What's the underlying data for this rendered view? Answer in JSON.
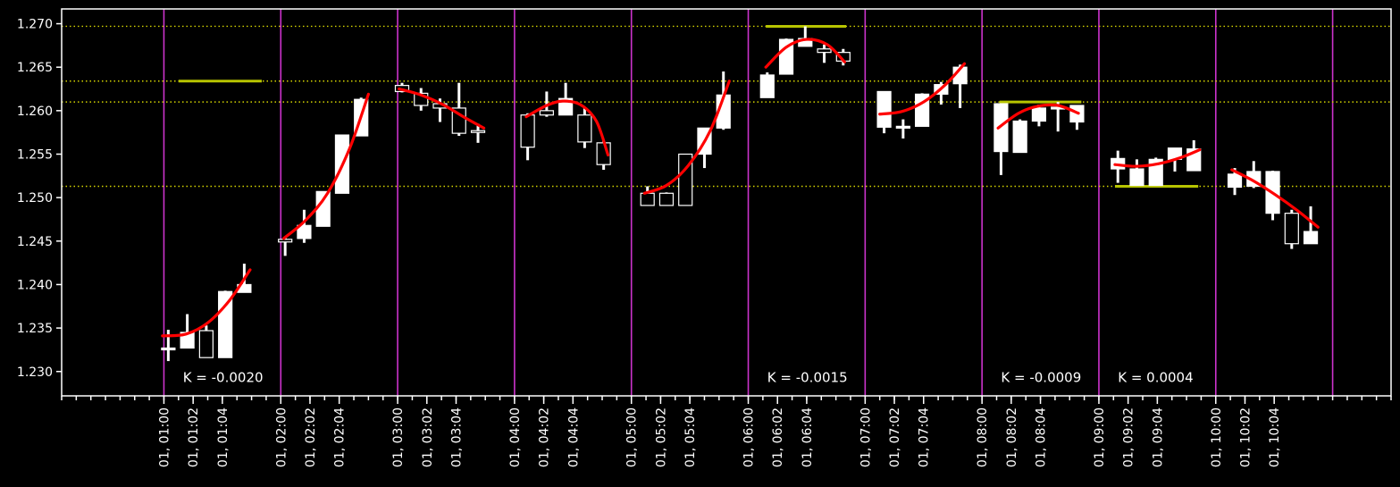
{
  "chart_data": {
    "type": "candlestick",
    "title": "",
    "xlabel": "",
    "ylabel": "",
    "ylim": [
      1.2272,
      1.2717
    ],
    "xlim": [
      -7,
      84
    ],
    "yticks": [
      "1.230",
      "1.235",
      "1.240",
      "1.245",
      "1.250",
      "1.255",
      "1.260",
      "1.265",
      "1.270"
    ],
    "xticks": [
      {
        "x": 0,
        "label": "01, 01:00"
      },
      {
        "x": 2,
        "label": "01, 01:02"
      },
      {
        "x": 4,
        "label": "01, 01:04"
      },
      {
        "x": 8,
        "label": "01, 02:00"
      },
      {
        "x": 10,
        "label": "01, 02:02"
      },
      {
        "x": 12,
        "label": "01, 02:04"
      },
      {
        "x": 16,
        "label": "01, 03:00"
      },
      {
        "x": 18,
        "label": "01, 03:02"
      },
      {
        "x": 20,
        "label": "01, 03:04"
      },
      {
        "x": 24,
        "label": "01, 04:00"
      },
      {
        "x": 26,
        "label": "01, 04:02"
      },
      {
        "x": 28,
        "label": "01, 04:04"
      },
      {
        "x": 32,
        "label": "01, 05:00"
      },
      {
        "x": 34,
        "label": "01, 05:02"
      },
      {
        "x": 36,
        "label": "01, 05:04"
      },
      {
        "x": 40,
        "label": "01, 06:00"
      },
      {
        "x": 42,
        "label": "01, 06:02"
      },
      {
        "x": 44,
        "label": "01, 06:04"
      },
      {
        "x": 48,
        "label": "01, 07:00"
      },
      {
        "x": 50,
        "label": "01, 07:02"
      },
      {
        "x": 52,
        "label": "01, 07:04"
      },
      {
        "x": 56,
        "label": "01, 08:00"
      },
      {
        "x": 58,
        "label": "01, 08:02"
      },
      {
        "x": 60,
        "label": "01, 08:04"
      },
      {
        "x": 64,
        "label": "01, 09:00"
      },
      {
        "x": 66,
        "label": "01, 09:02"
      },
      {
        "x": 68,
        "label": "01, 09:04"
      },
      {
        "x": 72,
        "label": "01, 10:00"
      },
      {
        "x": 74,
        "label": "01, 10:02"
      },
      {
        "x": 76,
        "label": "01, 10:04"
      }
    ],
    "vlines": [
      0,
      8,
      16,
      24,
      32,
      40,
      48,
      56,
      64,
      72,
      80
    ],
    "hlines": [
      1.2697,
      1.2634,
      1.261,
      1.2513
    ],
    "level_segments": [
      {
        "y": 1.2634,
        "x0": 1,
        "x1": 6.7
      },
      {
        "y": 1.2697,
        "x0": 41.2,
        "x1": 46.7
      },
      {
        "y": 1.261,
        "x0": 57.2,
        "x1": 62.8
      },
      {
        "y": 1.2513,
        "x0": 65.1,
        "x1": 70.8
      }
    ],
    "annotations": [
      {
        "text": "K = -0.0020",
        "x": 1.3,
        "y": 1.2288
      },
      {
        "text": "K = -0.0015",
        "x": 41.3,
        "y": 1.2288
      },
      {
        "text": "K = -0.0009",
        "x": 57.3,
        "y": 1.2288
      },
      {
        "text": "K = 0.0004",
        "x": 65.3,
        "y": 1.2288
      }
    ],
    "candles": [
      {
        "x": 0.3,
        "o": 1.2325,
        "h": 1.2348,
        "l": 1.2312,
        "c": 1.2327
      },
      {
        "x": 1.6,
        "o": 1.2327,
        "h": 1.2366,
        "l": 1.2327,
        "c": 1.2345
      },
      {
        "x": 2.9,
        "o": 1.2347,
        "h": 1.2353,
        "l": 1.2316,
        "c": 1.2316
      },
      {
        "x": 4.2,
        "o": 1.2316,
        "h": 1.2393,
        "l": 1.2316,
        "c": 1.2392
      },
      {
        "x": 5.5,
        "o": 1.2391,
        "h": 1.2424,
        "l": 1.2391,
        "c": 1.24
      },
      {
        "x": 8.3,
        "o": 1.2452,
        "h": 1.2454,
        "l": 1.2433,
        "c": 1.2449
      },
      {
        "x": 9.6,
        "o": 1.2453,
        "h": 1.2486,
        "l": 1.2448,
        "c": 1.2468
      },
      {
        "x": 10.9,
        "o": 1.2467,
        "h": 1.2507,
        "l": 1.2467,
        "c": 1.2507
      },
      {
        "x": 12.2,
        "o": 1.2505,
        "h": 1.2572,
        "l": 1.2505,
        "c": 1.2572
      },
      {
        "x": 13.5,
        "o": 1.2571,
        "h": 1.2615,
        "l": 1.2571,
        "c": 1.2613
      },
      {
        "x": 16.3,
        "o": 1.2629,
        "h": 1.2632,
        "l": 1.2621,
        "c": 1.2622
      },
      {
        "x": 17.6,
        "o": 1.262,
        "h": 1.2626,
        "l": 1.26,
        "c": 1.2606
      },
      {
        "x": 18.9,
        "o": 1.2608,
        "h": 1.2614,
        "l": 1.2587,
        "c": 1.2603
      },
      {
        "x": 20.2,
        "o": 1.2603,
        "h": 1.2632,
        "l": 1.2571,
        "c": 1.2574
      },
      {
        "x": 21.5,
        "o": 1.2577,
        "h": 1.2585,
        "l": 1.2563,
        "c": 1.2575
      },
      {
        "x": 24.9,
        "o": 1.2595,
        "h": 1.2597,
        "l": 1.2543,
        "c": 1.2558
      },
      {
        "x": 26.2,
        "o": 1.26,
        "h": 1.2622,
        "l": 1.2593,
        "c": 1.2595
      },
      {
        "x": 27.5,
        "o": 1.2595,
        "h": 1.2632,
        "l": 1.2595,
        "c": 1.2614
      },
      {
        "x": 28.8,
        "o": 1.2595,
        "h": 1.2604,
        "l": 1.2557,
        "c": 1.2564
      },
      {
        "x": 30.1,
        "o": 1.2563,
        "h": 1.2565,
        "l": 1.2532,
        "c": 1.2538
      },
      {
        "x": 33.1,
        "o": 1.2505,
        "h": 1.2513,
        "l": 1.2491,
        "c": 1.2491
      },
      {
        "x": 34.4,
        "o": 1.2505,
        "h": 1.2506,
        "l": 1.2491,
        "c": 1.2491
      },
      {
        "x": 35.7,
        "o": 1.255,
        "h": 1.255,
        "l": 1.2491,
        "c": 1.2491
      },
      {
        "x": 37.0,
        "o": 1.255,
        "h": 1.258,
        "l": 1.2534,
        "c": 1.258
      },
      {
        "x": 38.3,
        "o": 1.258,
        "h": 1.2645,
        "l": 1.2578,
        "c": 1.2618
      },
      {
        "x": 41.3,
        "o": 1.2615,
        "h": 1.2644,
        "l": 1.2615,
        "c": 1.2641
      },
      {
        "x": 42.6,
        "o": 1.2642,
        "h": 1.2683,
        "l": 1.2642,
        "c": 1.2682
      },
      {
        "x": 43.9,
        "o": 1.2674,
        "h": 1.2697,
        "l": 1.2674,
        "c": 1.2683
      },
      {
        "x": 45.2,
        "o": 1.2671,
        "h": 1.2676,
        "l": 1.2655,
        "c": 1.2667
      },
      {
        "x": 46.5,
        "o": 1.2667,
        "h": 1.2671,
        "l": 1.2652,
        "c": 1.2657
      },
      {
        "x": 49.3,
        "o": 1.2581,
        "h": 1.2622,
        "l": 1.2574,
        "c": 1.2622
      },
      {
        "x": 50.6,
        "o": 1.2582,
        "h": 1.259,
        "l": 1.2568,
        "c": 1.2582
      },
      {
        "x": 51.9,
        "o": 1.2582,
        "h": 1.262,
        "l": 1.2582,
        "c": 1.2619
      },
      {
        "x": 53.2,
        "o": 1.2619,
        "h": 1.2633,
        "l": 1.2607,
        "c": 1.263
      },
      {
        "x": 54.5,
        "o": 1.2631,
        "h": 1.2653,
        "l": 1.2603,
        "c": 1.265
      },
      {
        "x": 57.3,
        "o": 1.2553,
        "h": 1.2608,
        "l": 1.2526,
        "c": 1.2608
      },
      {
        "x": 58.6,
        "o": 1.2552,
        "h": 1.259,
        "l": 1.2552,
        "c": 1.2588
      },
      {
        "x": 59.9,
        "o": 1.2588,
        "h": 1.2607,
        "l": 1.2582,
        "c": 1.2603
      },
      {
        "x": 61.2,
        "o": 1.2603,
        "h": 1.261,
        "l": 1.2576,
        "c": 1.2604
      },
      {
        "x": 62.5,
        "o": 1.2587,
        "h": 1.2606,
        "l": 1.2578,
        "c": 1.2606
      },
      {
        "x": 65.3,
        "o": 1.2533,
        "h": 1.2554,
        "l": 1.2517,
        "c": 1.2545
      },
      {
        "x": 66.6,
        "o": 1.2514,
        "h": 1.2544,
        "l": 1.2514,
        "c": 1.2533
      },
      {
        "x": 67.9,
        "o": 1.2514,
        "h": 1.2546,
        "l": 1.2514,
        "c": 1.2544
      },
      {
        "x": 69.2,
        "o": 1.2544,
        "h": 1.2557,
        "l": 1.253,
        "c": 1.2557
      },
      {
        "x": 70.5,
        "o": 1.2531,
        "h": 1.2566,
        "l": 1.2531,
        "c": 1.2556
      },
      {
        "x": 73.3,
        "o": 1.2512,
        "h": 1.2534,
        "l": 1.2503,
        "c": 1.2527
      },
      {
        "x": 74.6,
        "o": 1.2513,
        "h": 1.2542,
        "l": 1.2511,
        "c": 1.253
      },
      {
        "x": 75.9,
        "o": 1.2482,
        "h": 1.2531,
        "l": 1.2474,
        "c": 1.253
      },
      {
        "x": 77.2,
        "o": 1.2482,
        "h": 1.2486,
        "l": 1.2441,
        "c": 1.2447
      },
      {
        "x": 78.5,
        "o": 1.2447,
        "h": 1.249,
        "l": 1.2447,
        "c": 1.2461
      }
    ],
    "trend_lines": [
      {
        "points": [
          [
            -0.1,
            1.2341
          ],
          [
            1.5,
            1.2343
          ],
          [
            3.0,
            1.2356
          ],
          [
            4.5,
            1.2382
          ],
          [
            5.9,
            1.2417
          ]
        ]
      },
      {
        "points": [
          [
            8.2,
            1.2453
          ],
          [
            9.7,
            1.2474
          ],
          [
            11.2,
            1.2505
          ],
          [
            12.7,
            1.2556
          ],
          [
            14.0,
            1.2619
          ]
        ]
      },
      {
        "points": [
          [
            16.1,
            1.2625
          ],
          [
            17.6,
            1.2618
          ],
          [
            19.1,
            1.2607
          ],
          [
            20.6,
            1.2592
          ],
          [
            21.9,
            1.258
          ]
        ]
      },
      {
        "points": [
          [
            24.8,
            1.2593
          ],
          [
            26.2,
            1.2606
          ],
          [
            27.3,
            1.2611
          ],
          [
            28.5,
            1.2607
          ],
          [
            29.6,
            1.2588
          ],
          [
            30.4,
            1.2549
          ]
        ]
      },
      {
        "points": [
          [
            32.9,
            1.2505
          ],
          [
            34.4,
            1.2514
          ],
          [
            35.9,
            1.2537
          ],
          [
            37.4,
            1.2577
          ],
          [
            38.7,
            1.2634
          ]
        ]
      },
      {
        "points": [
          [
            41.2,
            1.265
          ],
          [
            42.6,
            1.2673
          ],
          [
            44.0,
            1.2682
          ],
          [
            45.4,
            1.2676
          ],
          [
            46.6,
            1.2656
          ]
        ]
      },
      {
        "points": [
          [
            49.0,
            1.2596
          ],
          [
            50.5,
            1.2599
          ],
          [
            52.0,
            1.261
          ],
          [
            53.5,
            1.263
          ],
          [
            54.8,
            1.2654
          ]
        ]
      },
      {
        "points": [
          [
            57.1,
            1.258
          ],
          [
            58.5,
            1.2597
          ],
          [
            59.8,
            1.2605
          ],
          [
            61.2,
            1.2606
          ],
          [
            62.6,
            1.2597
          ]
        ]
      },
      {
        "points": [
          [
            65.1,
            1.2538
          ],
          [
            66.6,
            1.2536
          ],
          [
            68.1,
            1.2539
          ],
          [
            69.6,
            1.2546
          ],
          [
            70.9,
            1.2555
          ]
        ]
      },
      {
        "points": [
          [
            73.1,
            1.2532
          ],
          [
            74.6,
            1.2519
          ],
          [
            76.1,
            1.2503
          ],
          [
            77.6,
            1.2485
          ],
          [
            79.0,
            1.2466
          ]
        ]
      }
    ],
    "colors": {
      "background": "#000000",
      "axes": "#ffffff",
      "candle": "#ffffff",
      "session_lines": "#cc33cc",
      "level_lines": "#d4d400",
      "level_segments": "#b7c400",
      "trend": "#ff0000"
    }
  }
}
